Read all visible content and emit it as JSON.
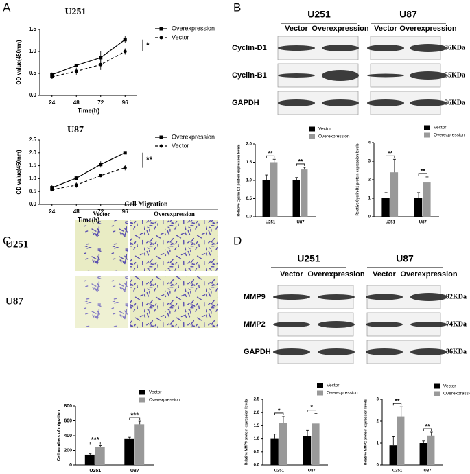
{
  "panel_labels": [
    "A",
    "B",
    "C",
    "D"
  ],
  "blot_b": {
    "cell_lines": [
      "U251",
      "U87"
    ],
    "lanes": [
      "Vector",
      "Overexpression",
      "Vector",
      "Overexpression"
    ],
    "proteins": [
      "Cyclin-D1",
      "Cyclin-B1",
      "GAPDH"
    ],
    "sizes": [
      "36KDa",
      "55KDa",
      "36KDa"
    ]
  },
  "migration": {
    "title": "Cell Migration",
    "columns": [
      "Vector",
      "Overexpression"
    ],
    "rows": [
      "U251",
      "U87"
    ]
  },
  "blot_d": {
    "cell_lines": [
      "U251",
      "U87"
    ],
    "lanes": [
      "Vector",
      "Overexpression",
      "Vector",
      "Overexpression"
    ],
    "proteins": [
      "MMP9",
      "MMP2",
      "GAPDH"
    ],
    "sizes": [
      "92KDa",
      "74KDa",
      "36KDa"
    ]
  },
  "chart_data": [
    {
      "type": "line",
      "title": "U251",
      "x": [
        24,
        48,
        72,
        96
      ],
      "xlim": [
        12,
        108
      ],
      "xticks": [
        24,
        48,
        72,
        96
      ],
      "xlabel": "Time(h)",
      "ylabel": "OD value(450nm)",
      "ylim": [
        0,
        1.5
      ],
      "yticks": [
        {
          "value": 0,
          "label": "0.0"
        },
        {
          "value": 0.5,
          "label": "0.5"
        },
        {
          "value": 1,
          "label": "1.0"
        },
        {
          "value": 1.5,
          "label": "1.5"
        }
      ],
      "series": [
        {
          "name": "Overexpression",
          "color": "#000000",
          "line_style": "solid",
          "marker": "square",
          "values": [
            0.47,
            0.68,
            0.86,
            1.27
          ],
          "errors": [
            0.05,
            0.03,
            0.15,
            0.08
          ]
        },
        {
          "name": "Vector",
          "color": "#000000",
          "line_style": "dashed",
          "marker": "circle",
          "values": [
            0.42,
            0.55,
            0.7,
            1.0
          ],
          "errors": [
            0.04,
            0.08,
            0.12,
            0.07
          ]
        }
      ],
      "annotation": "*"
    },
    {
      "type": "line",
      "title": "U87",
      "x": [
        24,
        48,
        72,
        96
      ],
      "xlim": [
        12,
        108
      ],
      "xticks": [
        24,
        48,
        72,
        96
      ],
      "xlabel": "Time(h)",
      "ylabel": "OD value(450nm)",
      "ylim": [
        0,
        2.5
      ],
      "yticks": [
        {
          "value": 0,
          "label": "0.0"
        },
        {
          "value": 0.5,
          "label": "0.5"
        },
        {
          "value": 1,
          "label": "1.0"
        },
        {
          "value": 1.5,
          "label": "1.5"
        },
        {
          "value": 2,
          "label": "2.0"
        },
        {
          "value": 2.5,
          "label": "2.5"
        }
      ],
      "series": [
        {
          "name": "Overexpression",
          "color": "#000000",
          "line_style": "solid",
          "marker": "square",
          "values": [
            0.65,
            1.02,
            1.55,
            2.0
          ],
          "errors": [
            0.1,
            0.07,
            0.12,
            0.05
          ]
        },
        {
          "name": "Vector",
          "color": "#000000",
          "line_style": "dashed",
          "marker": "circle",
          "values": [
            0.57,
            0.75,
            1.12,
            1.42
          ],
          "errors": [
            0.06,
            0.1,
            0.05,
            0.1
          ]
        }
      ],
      "annotation": "**"
    },
    {
      "type": "bar",
      "categories": [
        "U251",
        "U87"
      ],
      "ylabel": "Relative Cyclin-D1 protein expression levels",
      "ylim": [
        0,
        2.0
      ],
      "yticks": [
        {
          "value": 0,
          "label": "0.0"
        },
        {
          "value": 0.5,
          "label": "0.5"
        },
        {
          "value": 1,
          "label": "1.0"
        },
        {
          "value": 1.5,
          "label": "1.5"
        },
        {
          "value": 2,
          "label": "2.0"
        }
      ],
      "series": [
        {
          "name": "Vector",
          "color": "#000000",
          "values": [
            1.0,
            1.0
          ],
          "errors": [
            0.15,
            0.08
          ]
        },
        {
          "name": "Overexpression",
          "color": "#999999",
          "values": [
            1.5,
            1.3
          ],
          "errors": [
            0.08,
            0.06
          ]
        }
      ],
      "annotations": [
        "**",
        "**"
      ]
    },
    {
      "type": "bar",
      "categories": [
        "U251",
        "U87"
      ],
      "ylabel": "Relative Cyclin-B1 protein expression levels",
      "ylim": [
        0,
        4
      ],
      "yticks": [
        0,
        1,
        2,
        3,
        4
      ],
      "series": [
        {
          "name": "Vector",
          "color": "#000000",
          "values": [
            1.0,
            1.0
          ],
          "errors": [
            0.3,
            0.3
          ]
        },
        {
          "name": "Overexpression",
          "color": "#999999",
          "values": [
            2.4,
            1.85
          ],
          "errors": [
            0.7,
            0.3
          ]
        }
      ],
      "annotations": [
        "**",
        "**"
      ]
    },
    {
      "type": "bar",
      "categories": [
        "U251",
        "U87"
      ],
      "ylabel": "Cell numbers of migration",
      "ylim": [
        0,
        800
      ],
      "yticks": [
        0,
        200,
        400,
        600,
        800
      ],
      "series": [
        {
          "name": "Vector",
          "color": "#000000",
          "values": [
            140,
            355
          ],
          "errors": [
            12,
            25
          ]
        },
        {
          "name": "Overexpression",
          "color": "#999999",
          "values": [
            245,
            555
          ],
          "errors": [
            20,
            40
          ]
        }
      ],
      "annotations": [
        "***",
        "***"
      ]
    },
    {
      "type": "bar",
      "categories": [
        "U251",
        "U87"
      ],
      "ylabel": "Relative MMP9 protein expression levels",
      "ylim": [
        0,
        2.5
      ],
      "yticks": [
        {
          "value": 0,
          "label": "0.0"
        },
        {
          "value": 0.5,
          "label": "0.5"
        },
        {
          "value": 1,
          "label": "1.0"
        },
        {
          "value": 1.5,
          "label": "1.5"
        },
        {
          "value": 2,
          "label": "2.0"
        },
        {
          "value": 2.5,
          "label": "2.5"
        }
      ],
      "series": [
        {
          "name": "Vector",
          "color": "#000000",
          "values": [
            1.0,
            1.1
          ],
          "errors": [
            0.18,
            0.22
          ]
        },
        {
          "name": "Overexpression",
          "color": "#999999",
          "values": [
            1.6,
            1.58
          ],
          "errors": [
            0.25,
            0.38
          ]
        }
      ],
      "annotations": [
        "*",
        "*"
      ]
    },
    {
      "type": "bar",
      "categories": [
        "U251",
        "U87"
      ],
      "ylabel": "Relative MMP2 protein expression levels",
      "ylim": [
        0,
        3
      ],
      "yticks": [
        0,
        1,
        2,
        3
      ],
      "series": [
        {
          "name": "Vector",
          "color": "#000000",
          "values": [
            0.9,
            1.0
          ],
          "errors": [
            0.4,
            0.1
          ]
        },
        {
          "name": "Overexpression",
          "color": "#999999",
          "values": [
            2.2,
            1.35
          ],
          "errors": [
            0.45,
            0.15
          ]
        }
      ],
      "annotations": [
        "**",
        "**"
      ]
    }
  ]
}
